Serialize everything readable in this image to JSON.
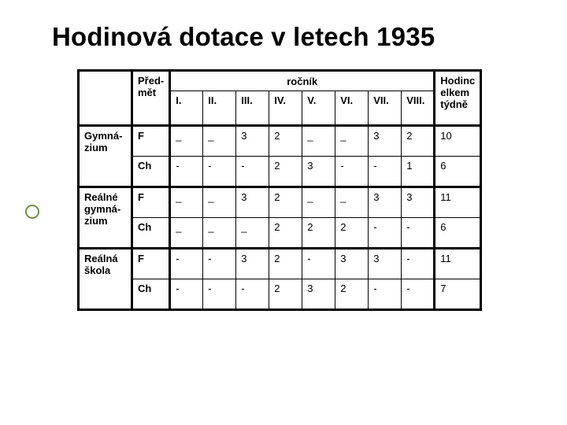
{
  "title": "Hodinová dotace v letech 1935",
  "colors": {
    "text": "#000000",
    "bullet_ring": "#6f8f3f",
    "background": "#ffffff",
    "border": "#000000"
  },
  "table": {
    "cornerBlankSpan": 1,
    "predmet_label": "Před-\nmět",
    "rocnik_label": "ročník",
    "total_label": "Hodinc\nelkem\ntýdně",
    "year_headers": [
      "I.",
      "II.",
      "III.",
      "IV.",
      "V.",
      "VI.",
      "VII.",
      "VIII."
    ],
    "schools": [
      {
        "name": "Gymná-\nzium",
        "rows": [
          {
            "subject": "F",
            "cells": [
              "_",
              "_",
              "3",
              "2",
              "_",
              "_",
              "3",
              "2"
            ],
            "total": "10"
          },
          {
            "subject": "Ch",
            "cells": [
              "-",
              "-",
              "-",
              "2",
              "3",
              "-",
              "-",
              "1"
            ],
            "total": "6"
          }
        ]
      },
      {
        "name": "Reálné\ngymná-\nzium",
        "rows": [
          {
            "subject": "F",
            "cells": [
              "_",
              "_",
              "3",
              "2",
              "_",
              "_",
              "3",
              "3"
            ],
            "total": "11"
          },
          {
            "subject": "Ch",
            "cells": [
              "_",
              "_",
              "_",
              "2",
              "2",
              "2",
              "-",
              "-"
            ],
            "total": "6"
          }
        ]
      },
      {
        "name": "Reálná\nškola",
        "rows": [
          {
            "subject": "F",
            "cells": [
              "-",
              "-",
              "3",
              "2",
              "-",
              "3",
              "3",
              "-"
            ],
            "total": "11"
          },
          {
            "subject": "Ch",
            "cells": [
              "-",
              "-",
              "-",
              "2",
              "3",
              "2",
              "-",
              "-"
            ],
            "total": "7"
          }
        ]
      }
    ]
  }
}
